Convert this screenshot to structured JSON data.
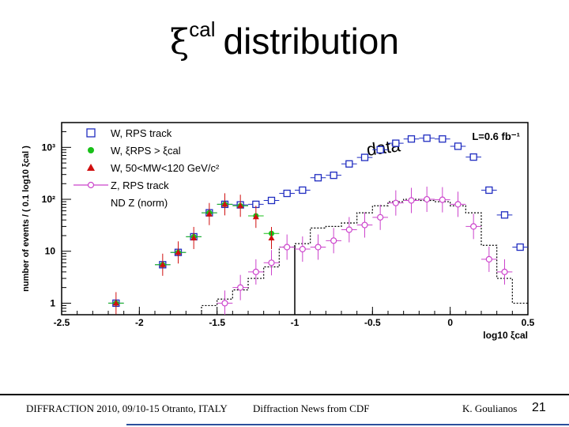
{
  "slide": {
    "title_symbol": "ξ",
    "title_sup": "cal",
    "title_text": "distribution",
    "footer_left": "DIFFRACTION 2010, 09/10-15 Otranto, ITALY",
    "footer_center": "Diffraction News from CDF",
    "footer_right": "K. Goulianos",
    "page_number": "21"
  },
  "chart_data": {
    "type": "scatter",
    "xlabel": "log10 ξcal",
    "ylabel": "number of events / ( 0.1 log10 ξcal )",
    "xlim": [
      -2.5,
      0.5
    ],
    "ylog": true,
    "ylim": [
      0.6,
      3000
    ],
    "x_ticks": [
      "-2.5",
      "-2",
      "-1.5",
      "-1",
      "-0.5",
      "0",
      "0.5"
    ],
    "y_ticks": [
      "1",
      "10",
      "10²",
      "10³"
    ],
    "luminosity": "L=0.6 fb⁻¹",
    "annotation": "data",
    "legend_position": "top-left",
    "legend": [
      {
        "label": "W, RPS track",
        "marker": "open-square",
        "color": "#1f2cc0"
      },
      {
        "label": "W, ξRPS > ξcal",
        "marker": "filled-circle",
        "color": "#18c018"
      },
      {
        "label": "W, 50<MW<120 GeV/c²",
        "marker": "filled-triangle",
        "color": "#d01010"
      },
      {
        "label": "Z, RPS track",
        "marker": "open-circle-line",
        "color": "#cc44cc"
      },
      {
        "label": "ND Z (norm)",
        "marker": "dotted-line",
        "color": "#000000"
      }
    ],
    "series": [
      {
        "name": "W, RPS track",
        "x": [
          -2.15,
          -1.85,
          -1.75,
          -1.65,
          -1.55,
          -1.45,
          -1.35,
          -1.25,
          -1.15,
          -1.05,
          -0.95,
          -0.85,
          -0.75,
          -0.65,
          -0.55,
          -0.45,
          -0.35,
          -0.25,
          -0.15,
          -0.05,
          0.05,
          0.15,
          0.25,
          0.35,
          0.45
        ],
        "y": [
          1.0,
          5.5,
          9.5,
          19,
          55,
          80,
          78,
          80,
          95,
          130,
          150,
          260,
          290,
          480,
          640,
          900,
          1200,
          1450,
          1500,
          1450,
          1050,
          650,
          150,
          50,
          12
        ]
      },
      {
        "name": "W, ξRPS > ξcal",
        "x": [
          -2.15,
          -1.85,
          -1.75,
          -1.65,
          -1.55,
          -1.45,
          -1.35,
          -1.25,
          -1.15
        ],
        "y": [
          1.0,
          5.5,
          9.5,
          19,
          55,
          80,
          75,
          48,
          22
        ]
      },
      {
        "name": "W, 50<MW<120 GeV/c²",
        "x": [
          -2.15,
          -1.85,
          -1.75,
          -1.65,
          -1.55,
          -1.45,
          -1.35,
          -1.25,
          -1.15
        ],
        "y": [
          1.0,
          5.5,
          9.5,
          18,
          52,
          80,
          75,
          46,
          18
        ]
      },
      {
        "name": "Z, RPS track",
        "x": [
          -1.45,
          -1.35,
          -1.25,
          -1.15,
          -1.05,
          -0.95,
          -0.85,
          -0.75,
          -0.65,
          -0.55,
          -0.45,
          -0.35,
          -0.25,
          -0.15,
          -0.05,
          0.05,
          0.15,
          0.25,
          0.35
        ],
        "y": [
          1.0,
          2.0,
          4.0,
          6.0,
          12.0,
          11.0,
          12.0,
          16.0,
          26.0,
          32.0,
          45.0,
          85.0,
          95.0,
          100.0,
          98.0,
          80.0,
          30.0,
          7.0,
          4.0
        ]
      },
      {
        "name": "ND Z (norm)",
        "x": [
          -1.55,
          -1.45,
          -1.35,
          -1.25,
          -1.15,
          -1.05,
          -0.95,
          -0.85,
          -0.75,
          -0.65,
          -0.55,
          -0.45,
          -0.35,
          -0.25,
          -0.15,
          -0.05,
          0.05,
          0.15,
          0.25,
          0.35,
          0.45
        ],
        "y": [
          0.9,
          1.2,
          1.8,
          3.0,
          5.0,
          12.0,
          14.0,
          28.0,
          30.0,
          35.0,
          55.0,
          75.0,
          90.0,
          100.0,
          95.0,
          90.0,
          75.0,
          55.0,
          13.0,
          3.0,
          1.0
        ]
      }
    ]
  }
}
